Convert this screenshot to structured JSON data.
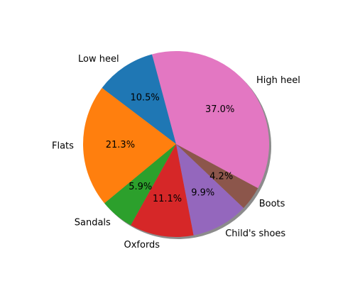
{
  "chart_data": {
    "type": "pie",
    "title": "",
    "startangle_deg": 105,
    "direction": "counterclockwise",
    "shadow": true,
    "slices": [
      {
        "label": "Low heel",
        "value": 10.5,
        "pct_label": "10.5%",
        "color": "#1f77b4"
      },
      {
        "label": "Flats",
        "value": 21.3,
        "pct_label": "21.3%",
        "color": "#ff7f0e"
      },
      {
        "label": "Sandals",
        "value": 5.9,
        "pct_label": "5.9%",
        "color": "#2ca02c"
      },
      {
        "label": "Oxfords",
        "value": 11.1,
        "pct_label": "11.1%",
        "color": "#d62728"
      },
      {
        "label": "Child's shoes",
        "value": 9.9,
        "pct_label": "9.9%",
        "color": "#9467bd"
      },
      {
        "label": "Boots",
        "value": 4.2,
        "pct_label": "4.2%",
        "color": "#8c564b"
      },
      {
        "label": "High heel",
        "value": 37.0,
        "pct_label": "37.0%",
        "color": "#e377c2"
      }
    ]
  }
}
